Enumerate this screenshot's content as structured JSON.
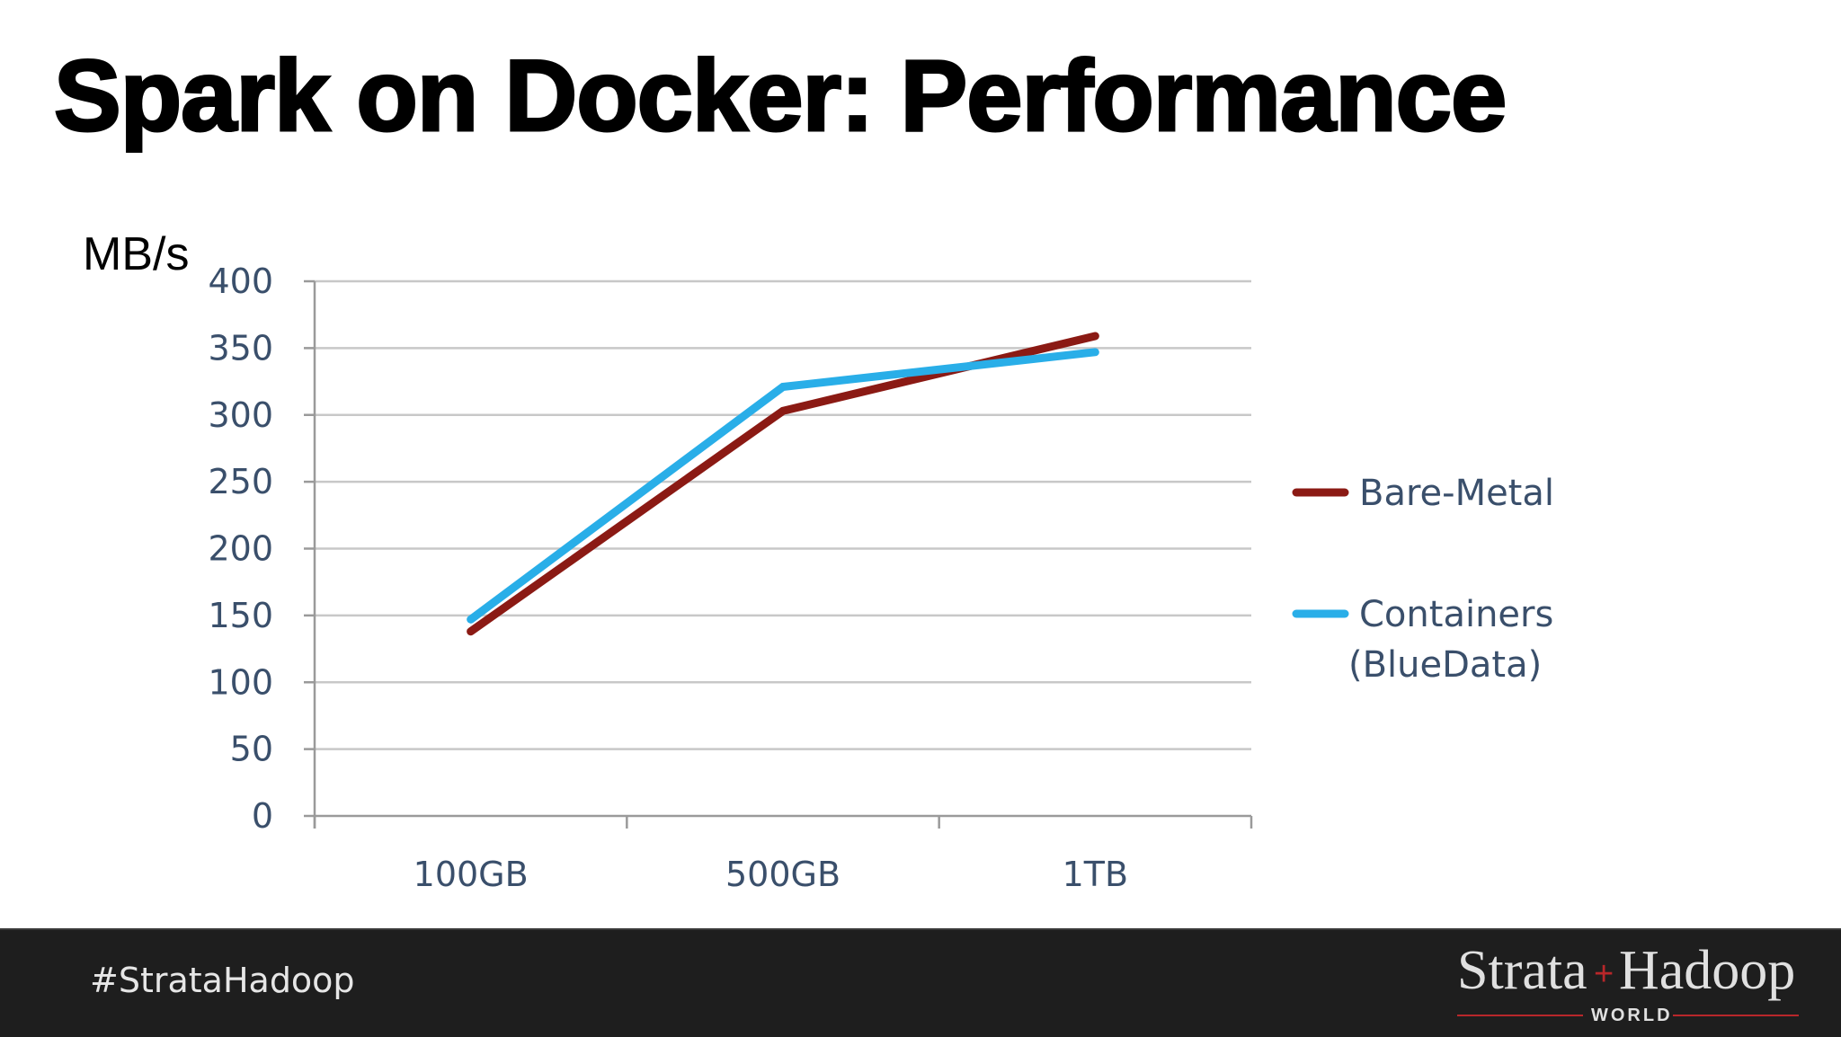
{
  "slide": {
    "title": "Spark on Docker: Performance"
  },
  "chart_data": {
    "type": "line",
    "ylabel": "MB/s",
    "categories": [
      "100GB",
      "500GB",
      "1TB"
    ],
    "yticks": [
      0,
      50,
      100,
      150,
      200,
      250,
      300,
      350,
      400
    ],
    "ylim": [
      0,
      400
    ],
    "grid": true,
    "legend_position": "right",
    "series": [
      {
        "name": "Bare-Metal",
        "values": [
          138,
          303,
          359
        ],
        "color": "#8b1a14"
      },
      {
        "name": "Containers (BlueData)",
        "name_lines": [
          "Containers",
          "(BlueData)"
        ],
        "values": [
          147,
          321,
          347
        ],
        "color": "#29aee8"
      }
    ]
  },
  "footer": {
    "hashtag": "#StrataHadoop",
    "logo": {
      "left": "Strata",
      "plus": "+",
      "right": "Hadoop",
      "sub": "WORLD"
    }
  }
}
